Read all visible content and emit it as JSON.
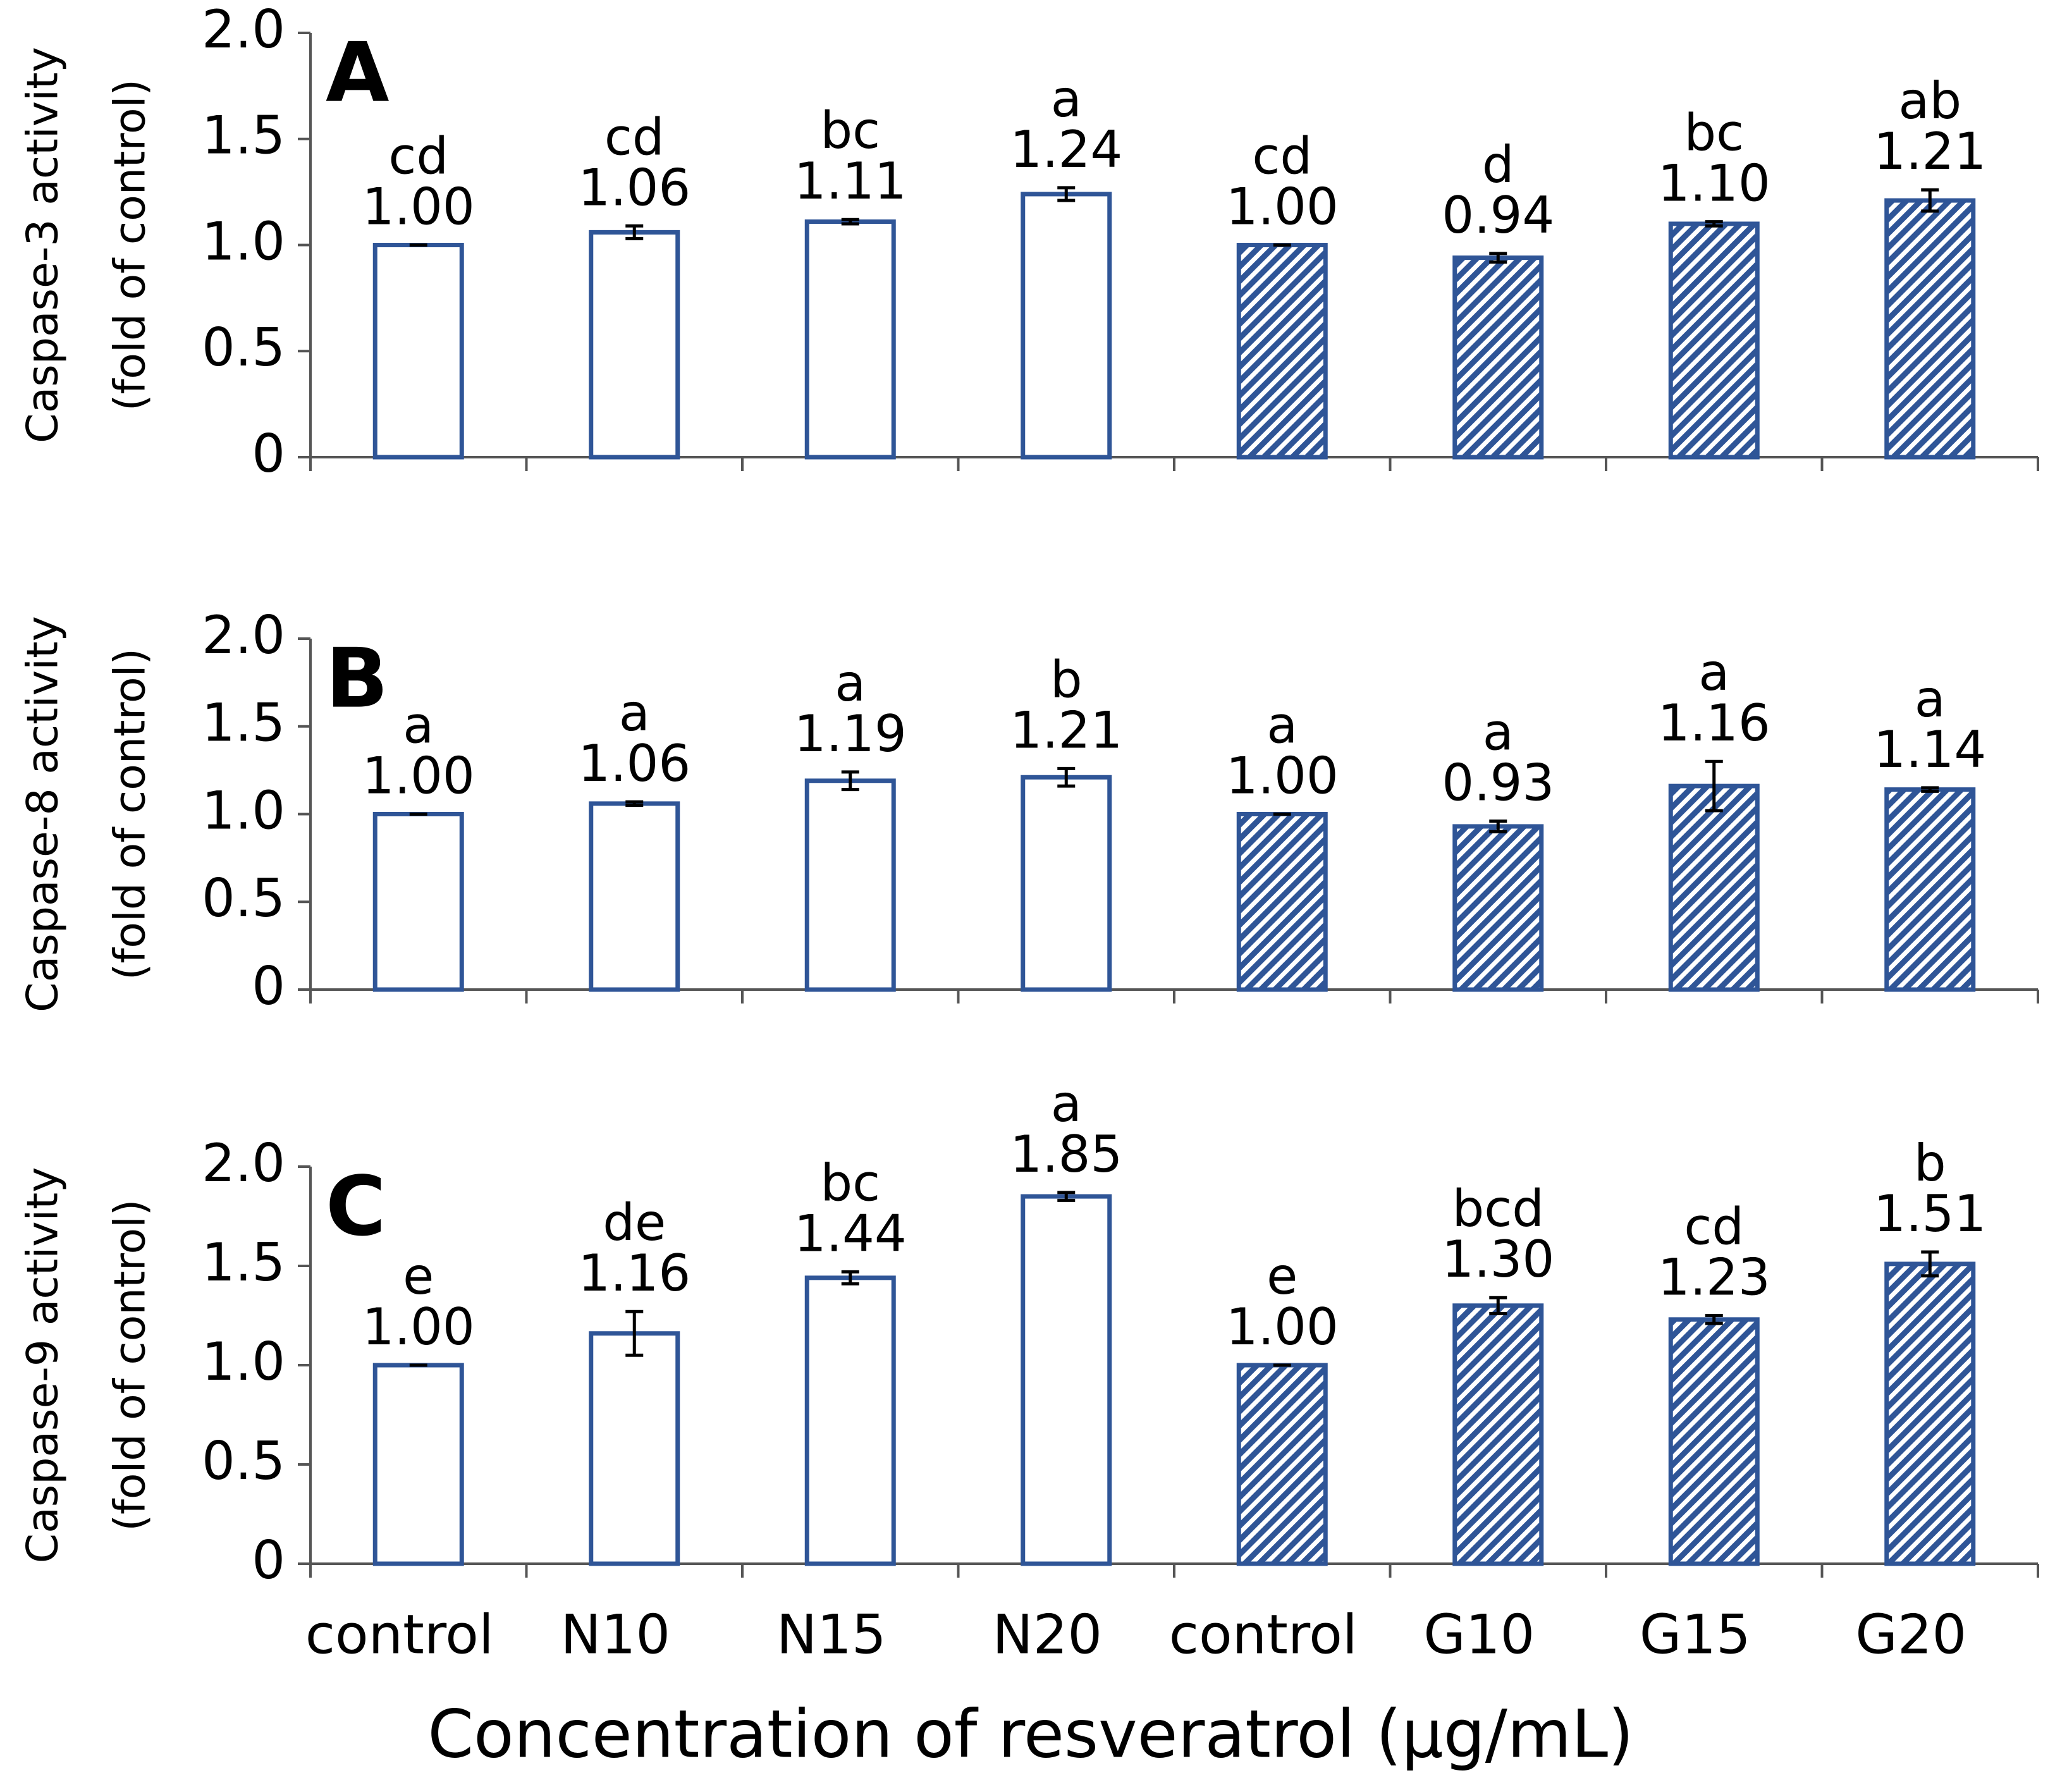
{
  "chart_data": [
    {
      "type": "bar",
      "panel": "A",
      "ylabel": [
        "Caspase-3 activity",
        "(fold of control)"
      ],
      "color": "#2f5597",
      "fills": [
        "white",
        "white",
        "white",
        "white",
        "hatched",
        "hatched",
        "hatched",
        "hatched"
      ],
      "values": [
        1.0,
        1.06,
        1.11,
        1.24,
        1.0,
        0.94,
        1.1,
        1.21
      ],
      "value_labels": [
        "1.00",
        "1.06",
        "1.11",
        "1.24",
        "1.00",
        "0.94",
        "1.10",
        "1.21"
      ],
      "errors": [
        0,
        0.03,
        0.01,
        0.03,
        0,
        0.02,
        0.01,
        0.05
      ],
      "letters": [
        "cd",
        "cd",
        "bc",
        "a",
        "cd",
        "d",
        "bc",
        "ab"
      ],
      "ylim": [
        0,
        2
      ],
      "yticks": [
        0,
        0.5,
        {
          "value": 1,
          "label": "1.0"
        },
        1.5,
        {
          "value": 2,
          "label": "2.0"
        }
      ]
    },
    {
      "type": "bar",
      "panel": "B",
      "ylabel": [
        "Caspase-8 activity",
        "(fold of control)"
      ],
      "color": "#2f5597",
      "fills": [
        "white",
        "white",
        "white",
        "white",
        "hatched",
        "hatched",
        "hatched",
        "hatched"
      ],
      "values": [
        1.0,
        1.06,
        1.19,
        1.21,
        1.0,
        0.93,
        1.16,
        1.14
      ],
      "value_labels": [
        "1.00",
        "1.06",
        "1.19",
        "1.21",
        "1.00",
        "0.93",
        "1.16",
        "1.14"
      ],
      "errors": [
        0,
        0.01,
        0.05,
        0.05,
        0,
        0.03,
        0.14,
        0.01
      ],
      "letters": [
        "a",
        "a",
        "a",
        "b",
        "a",
        "a",
        "a",
        "a"
      ],
      "ylim": [
        0,
        2
      ],
      "yticks": [
        0,
        0.5,
        {
          "value": 1,
          "label": "1.0"
        },
        1.5,
        {
          "value": 2,
          "label": "2.0"
        }
      ]
    },
    {
      "type": "bar",
      "panel": "C",
      "ylabel": [
        "Caspase-9 activity",
        "(fold of control)"
      ],
      "xlabel": "Concentration of resveratrol (μg/mL)",
      "categories": [
        "control",
        "N10",
        "N15",
        "N20",
        "control",
        "G10",
        "G15",
        "G20"
      ],
      "color": "#2f5597",
      "fills": [
        "white",
        "white",
        "white",
        "white",
        "hatched",
        "hatched",
        "hatched",
        "hatched"
      ],
      "values": [
        1.0,
        1.16,
        1.44,
        1.85,
        1.0,
        1.3,
        1.23,
        1.51
      ],
      "value_labels": [
        "1.00",
        "1.16",
        "1.44",
        "1.85",
        "1.00",
        "1.30",
        "1.23",
        "1.51"
      ],
      "errors": [
        0,
        0.11,
        0.03,
        0.02,
        0,
        0.04,
        0.02,
        0.06
      ],
      "letters": [
        "e",
        "de",
        "bc",
        "a",
        "e",
        "bcd",
        "cd",
        "b"
      ],
      "ylim": [
        0,
        2
      ],
      "yticks": [
        0,
        0.5,
        {
          "value": 1,
          "label": "1.0"
        },
        1.5,
        {
          "value": 2,
          "label": "2.0"
        }
      ]
    }
  ]
}
